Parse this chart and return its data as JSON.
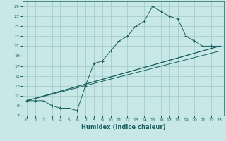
{
  "xlabel": "Humidex (Indice chaleur)",
  "bg_color": "#c8e8e8",
  "grid_color": "#a0c8c8",
  "line_color": "#1a6060",
  "xlim": [
    -0.5,
    23.5
  ],
  "ylim": [
    7,
    30
  ],
  "xticks": [
    0,
    1,
    2,
    3,
    4,
    5,
    6,
    7,
    8,
    9,
    10,
    11,
    12,
    13,
    14,
    15,
    16,
    17,
    18,
    19,
    20,
    21,
    22,
    23
  ],
  "yticks": [
    7,
    9,
    11,
    13,
    15,
    17,
    19,
    21,
    23,
    25,
    27,
    29
  ],
  "main_x": [
    0,
    1,
    2,
    3,
    4,
    5,
    6,
    7,
    8,
    9,
    10,
    11,
    12,
    13,
    14,
    15,
    16,
    17,
    18,
    19,
    20,
    21,
    22,
    23
  ],
  "main_y": [
    10,
    10,
    10,
    9,
    8.5,
    8.5,
    8,
    13,
    17.5,
    18,
    20,
    22,
    23,
    25,
    26,
    29,
    28,
    27,
    26.5,
    23,
    22,
    21,
    21,
    21
  ],
  "diag_lines": [
    {
      "x": [
        0,
        23
      ],
      "y": [
        10,
        21
      ]
    },
    {
      "x": [
        0,
        23
      ],
      "y": [
        10,
        21
      ]
    },
    {
      "x": [
        0,
        23
      ],
      "y": [
        10,
        20
      ]
    }
  ]
}
